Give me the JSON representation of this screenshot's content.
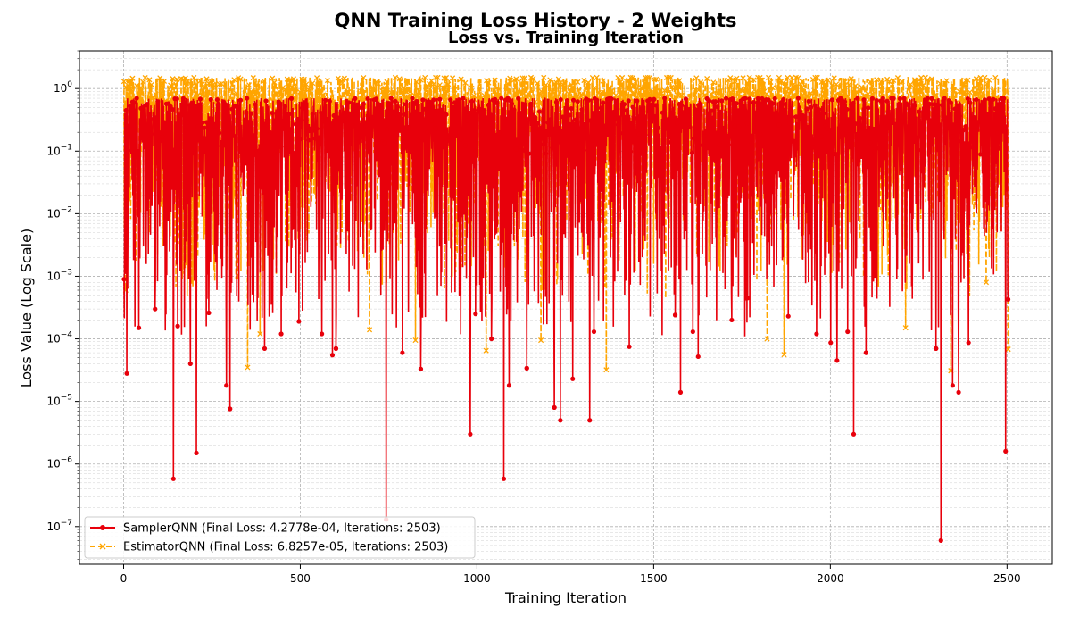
{
  "figure": {
    "suptitle": "QNN Training Loss History - 2 Weights"
  },
  "chart_data": {
    "type": "line",
    "title": "Loss vs. Training Iteration",
    "xlabel": "Training Iteration",
    "ylabel": "Loss Value (Log Scale)",
    "yscale": "log",
    "xlim": [
      -125,
      2628
    ],
    "ylim": [
      2.5e-08,
      4.0
    ],
    "x_ticks": [
      0,
      500,
      1000,
      1500,
      2000,
      2500
    ],
    "x_tick_labels": [
      "0",
      "500",
      "1000",
      "1500",
      "2000",
      "2500"
    ],
    "y_ticks": [
      1e-07,
      1e-06,
      1e-05,
      0.0001,
      0.001,
      0.01,
      0.1,
      1
    ],
    "y_tick_labels": [
      {
        "base": "10",
        "exp": "−7"
      },
      {
        "base": "10",
        "exp": "−6"
      },
      {
        "base": "10",
        "exp": "−5"
      },
      {
        "base": "10",
        "exp": "−4"
      },
      {
        "base": "10",
        "exp": "−3"
      },
      {
        "base": "10",
        "exp": "−2"
      },
      {
        "base": "10",
        "exp": "−1"
      },
      {
        "base": "10",
        "exp": "0"
      }
    ],
    "grid": true,
    "legend_position": "lower-left",
    "series": [
      {
        "name": "SamplerQNN (Final Loss: 4.2778e-04, Iterations: 2503)",
        "color": "#e8000b",
        "linestyle": "solid",
        "marker": "circle",
        "iterations": 2503,
        "final_loss": 0.00042778,
        "y_start": 0.0009,
        "envelope": [
          0.0001,
          0.7
        ],
        "spikes": [
          [
            8,
            2.8e-05
          ],
          [
            42,
            0.00015
          ],
          [
            88,
            0.0003
          ],
          [
            140,
            5.8e-07
          ],
          [
            152,
            0.00016
          ],
          [
            188,
            4e-05
          ],
          [
            205,
            1.5e-06
          ],
          [
            240,
            0.00026
          ],
          [
            290,
            1.8e-05
          ],
          [
            300,
            7.6e-06
          ],
          [
            398,
            7e-05
          ],
          [
            445,
            0.00012
          ],
          [
            495,
            0.00019
          ],
          [
            560,
            0.00012
          ],
          [
            590,
            5.5e-05
          ],
          [
            600,
            7e-05
          ],
          [
            742,
            1.3e-07
          ],
          [
            788,
            6e-05
          ],
          [
            840,
            3.3e-05
          ],
          [
            980,
            3e-06
          ],
          [
            995,
            0.00025
          ],
          [
            1040,
            0.0001
          ],
          [
            1075,
            5.8e-07
          ],
          [
            1090,
            1.8e-05
          ],
          [
            1140,
            3.4e-05
          ],
          [
            1218,
            8e-06
          ],
          [
            1235,
            5e-06
          ],
          [
            1270,
            2.3e-05
          ],
          [
            1318,
            5e-06
          ],
          [
            1330,
            0.00013
          ],
          [
            1430,
            7.5e-05
          ],
          [
            1560,
            0.00024
          ],
          [
            1575,
            1.4e-05
          ],
          [
            1610,
            0.00013
          ],
          [
            1625,
            5.2e-05
          ],
          [
            1720,
            0.0002
          ],
          [
            1765,
            0.00045
          ],
          [
            1880,
            0.00023
          ],
          [
            1960,
            0.00012
          ],
          [
            2000,
            8.7e-05
          ],
          [
            2018,
            4.5e-05
          ],
          [
            2048,
            0.00013
          ],
          [
            2065,
            3e-06
          ],
          [
            2100,
            6e-05
          ],
          [
            2298,
            7e-05
          ],
          [
            2312,
            6e-08
          ],
          [
            2345,
            1.8e-05
          ],
          [
            2362,
            1.4e-05
          ],
          [
            2390,
            8.7e-05
          ],
          [
            2495,
            1.6e-06
          ],
          [
            2503,
            0.00042778
          ]
        ]
      },
      {
        "name": "EstimatorQNN (Final Loss: 6.8257e-05, Iterations: 2503)",
        "color": "#ffa500",
        "linestyle": "dashed",
        "marker": "x",
        "iterations": 2503,
        "final_loss": 6.8257e-05,
        "y_start": 1.3,
        "envelope": [
          0.0004,
          1.5
        ],
        "spikes": [
          [
            5,
            0.0006
          ],
          [
            350,
            3.5e-05
          ],
          [
            385,
            0.00012
          ],
          [
            695,
            0.00014
          ],
          [
            825,
            9.5e-05
          ],
          [
            1025,
            6.5e-05
          ],
          [
            1180,
            9.5e-05
          ],
          [
            1365,
            3.2e-05
          ],
          [
            1820,
            0.0001
          ],
          [
            1868,
            5.6e-05
          ],
          [
            2212,
            0.00015
          ],
          [
            2340,
            3.1e-05
          ],
          [
            2440,
            0.0008
          ],
          [
            2503,
            6.8257e-05
          ]
        ]
      }
    ]
  }
}
